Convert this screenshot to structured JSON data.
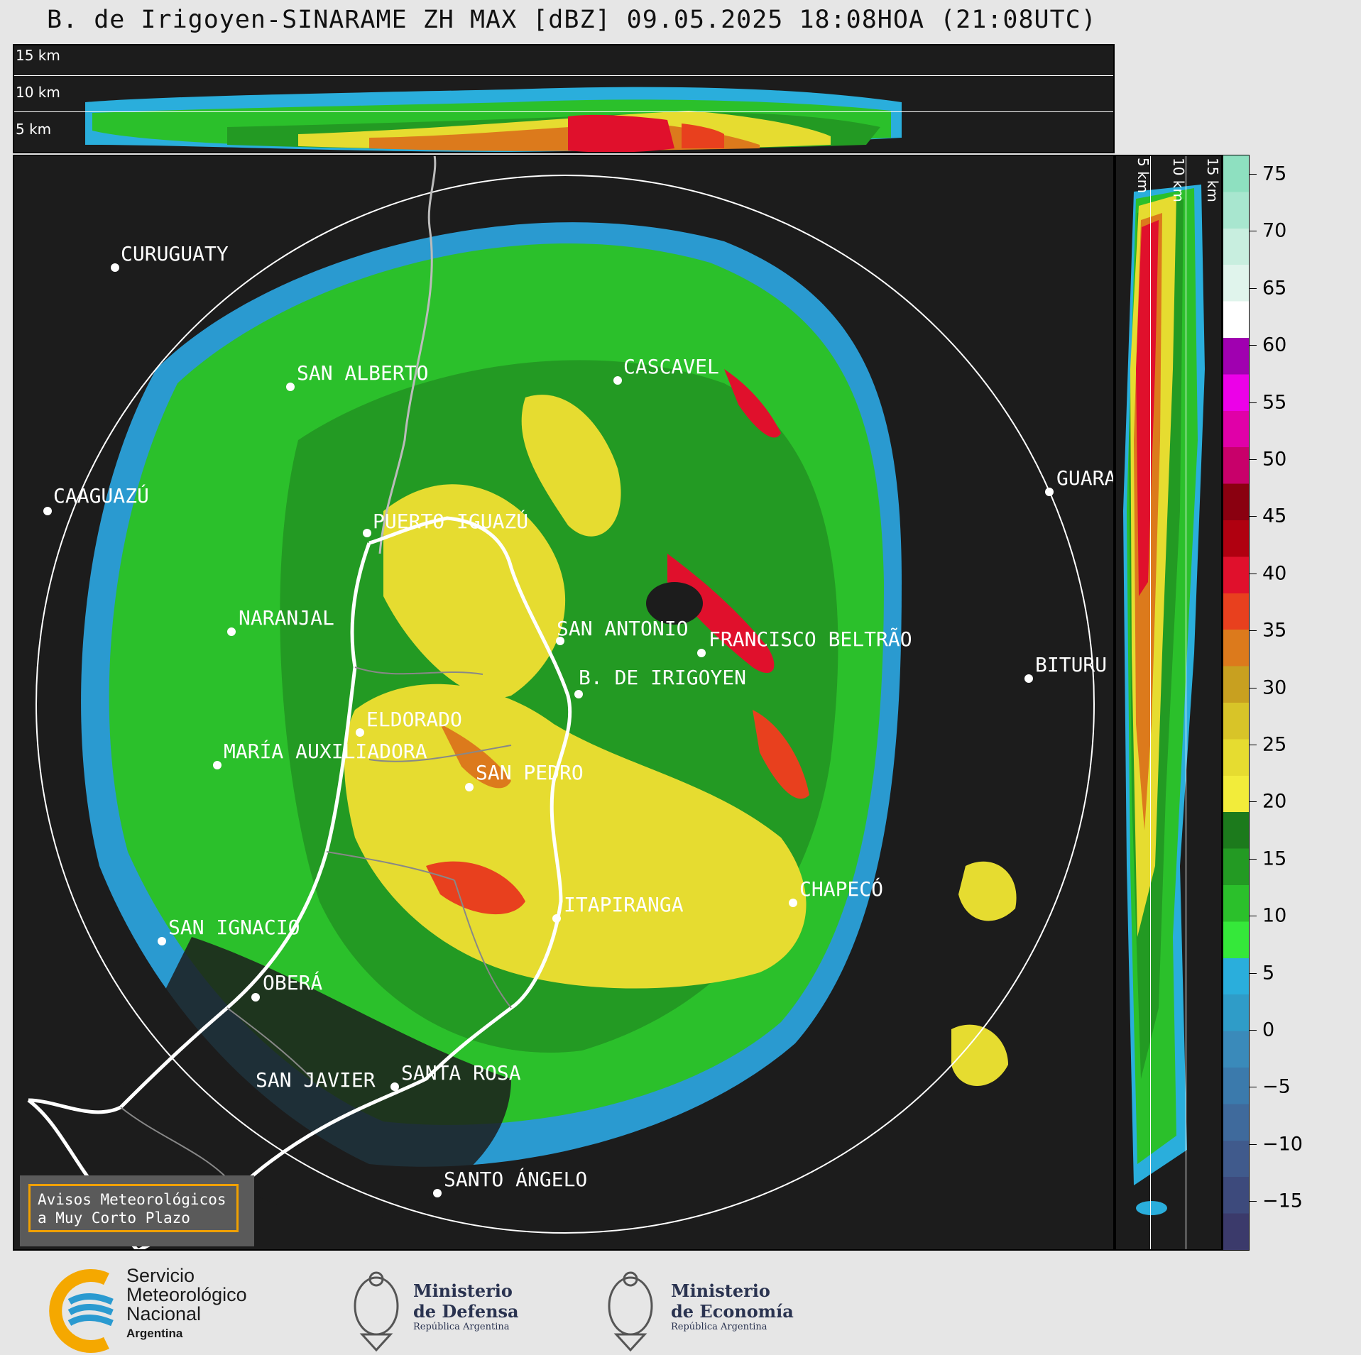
{
  "title": "B. de Irigoyen-SINARAME ZH MAX [dBZ] 09.05.2025 18:08HOA (21:08UTC)",
  "top_panel": {
    "height_labels": [
      "15 km",
      "10 km",
      "5 km"
    ]
  },
  "side_panel": {
    "height_labels": [
      "5 km",
      "10 km",
      "15 km"
    ]
  },
  "colorbar": {
    "ticks": [
      "75",
      "70",
      "65",
      "60",
      "55",
      "50",
      "45",
      "40",
      "35",
      "30",
      "25",
      "20",
      "15",
      "10",
      "5",
      "0",
      "−5",
      "−10",
      "−15"
    ],
    "colors": [
      "#3b3a6b",
      "#3d4a7c",
      "#405a8c",
      "#3f6a9c",
      "#3b7aac",
      "#3a8aba",
      "#2f9cc8",
      "#2aaedc",
      "#35e83a",
      "#2bc02b",
      "#239a23",
      "#1c7a1c",
      "#f2ec3a",
      "#e6dc30",
      "#d8c428",
      "#c8a020",
      "#dc7a1c",
      "#e8401e",
      "#e0102c",
      "#b00010",
      "#8a0010",
      "#c8006a",
      "#e000a8",
      "#ec00e8",
      "#a000b0",
      "#ffffff",
      "#e0f4ec",
      "#c8eedf",
      "#a8e6cf",
      "#8ee0c0"
    ]
  },
  "cities": [
    {
      "name": "CURUGUATY"
    },
    {
      "name": "SAN ALBERTO"
    },
    {
      "name": "CASCAVEL"
    },
    {
      "name": "CAAGUAZÚ"
    },
    {
      "name": "GUARA"
    },
    {
      "name": "PUERTO IGUAZÚ"
    },
    {
      "name": "NARANJAL"
    },
    {
      "name": "SAN ANTONIO"
    },
    {
      "name": "FRANCISCO BELTRÃO"
    },
    {
      "name": "BITURU"
    },
    {
      "name": "B. DE IRIGOYEN"
    },
    {
      "name": "ELDORADO"
    },
    {
      "name": "MARÍA AUXILIADORA"
    },
    {
      "name": "SAN PEDRO"
    },
    {
      "name": "CHAPECÓ"
    },
    {
      "name": "ITAPIRANGA"
    },
    {
      "name": "SAN IGNACIO"
    },
    {
      "name": "OBERÁ"
    },
    {
      "name": "SAN JAVIER"
    },
    {
      "name": "SANTA ROSA"
    },
    {
      "name": "SANTO ÁNGELO"
    }
  ],
  "warning": {
    "line1": "Avisos Meteorológicos",
    "line2": "a Muy Corto Plazo"
  },
  "footer": {
    "smn": {
      "line1": "Servicio",
      "line2": "Meteorológico",
      "line3": "Nacional",
      "line4": "Argentina"
    },
    "defensa": {
      "line1": "Ministerio",
      "line2": "de Defensa",
      "line3": "República Argentina"
    },
    "economia": {
      "line1": "Ministerio",
      "line2": "de Economía",
      "line3": "República Argentina"
    }
  }
}
